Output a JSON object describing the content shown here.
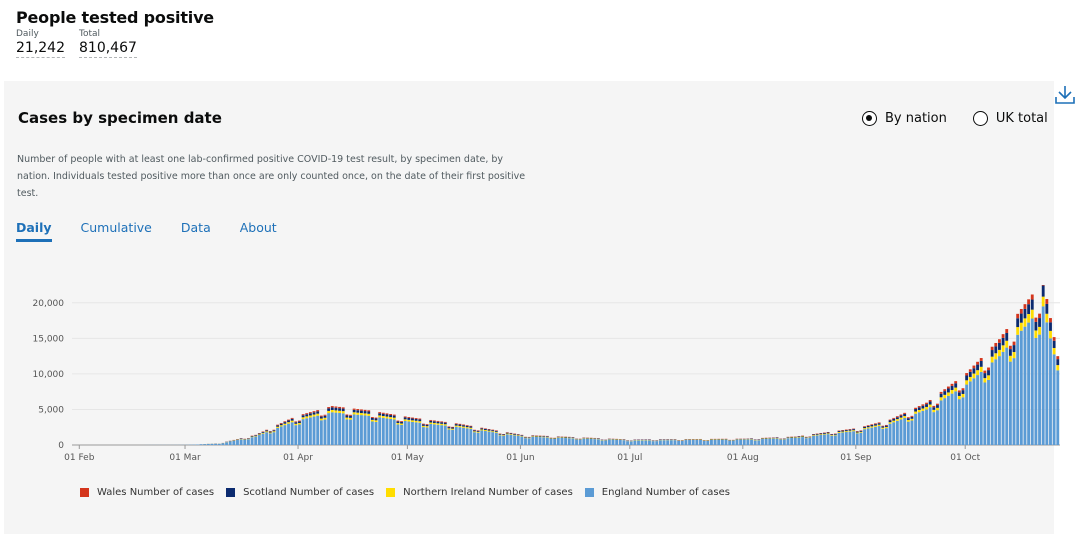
{
  "headline": {
    "title": "People tested positive",
    "daily_label": "Daily",
    "daily_value": "21,242",
    "total_label": "Total",
    "total_value": "810,467"
  },
  "card": {
    "title": "Cases by specimen date",
    "download_icon": "download-icon",
    "radio_by_nation": "By nation",
    "radio_uk_total": "UK total",
    "selected_radio": "By nation",
    "description": "Number of people with at least one lab-confirmed positive COVID-19 test result, by specimen date, by nation. Individuals tested positive more than once are only counted once, on the date of their first positive test.",
    "tabs": [
      "Daily",
      "Cumulative",
      "Data",
      "About"
    ],
    "active_tab": "Daily"
  },
  "colors": {
    "wales": "#d4351c",
    "scotland": "#0b2a6f",
    "northern_ireland": "#ffdd00",
    "england": "#5b9bd5",
    "accent": "#1d70b8"
  },
  "chart_data": {
    "type": "bar",
    "stacked": true,
    "ylim": [
      0,
      24000
    ],
    "yticks": [
      "0",
      "5,000",
      "10,000",
      "15,000",
      "20,000"
    ],
    "xticks": [
      "01 Feb",
      "01 Mar",
      "01 Apr",
      "01 May",
      "01 Jun",
      "01 Jul",
      "01 Aug",
      "01 Sep",
      "01 Oct"
    ],
    "start_date": "2020-01-30",
    "grid": true,
    "legend_position": "bottom",
    "legend": [
      "Wales Number of cases",
      "Scotland Number of cases",
      "Northern Ireland Number of cases",
      "England Number of cases"
    ],
    "england": [
      [
        "2020-01-30",
        2
      ],
      [
        "2020-02-15",
        5
      ],
      [
        "2020-03-01",
        20
      ],
      [
        "2020-03-10",
        200
      ],
      [
        "2020-03-20",
        1200
      ],
      [
        "2020-03-31",
        3400
      ],
      [
        "2020-04-10",
        4600
      ],
      [
        "2020-04-20",
        4100
      ],
      [
        "2020-05-01",
        3300
      ],
      [
        "2020-05-15",
        2500
      ],
      [
        "2020-06-01",
        1200
      ],
      [
        "2020-07-01",
        650
      ],
      [
        "2020-08-01",
        750
      ],
      [
        "2020-08-15",
        1000
      ],
      [
        "2020-09-01",
        2000
      ],
      [
        "2020-09-10",
        3000
      ],
      [
        "2020-09-20",
        5000
      ],
      [
        "2020-10-01",
        8500
      ],
      [
        "2020-10-10",
        12500
      ],
      [
        "2020-10-15",
        15500
      ],
      [
        "2020-10-22",
        19500
      ],
      [
        "2020-10-26",
        10500
      ]
    ],
    "scotland_share": 0.08,
    "northern_ireland_share": 0.07,
    "wales_share": 0.04
  }
}
